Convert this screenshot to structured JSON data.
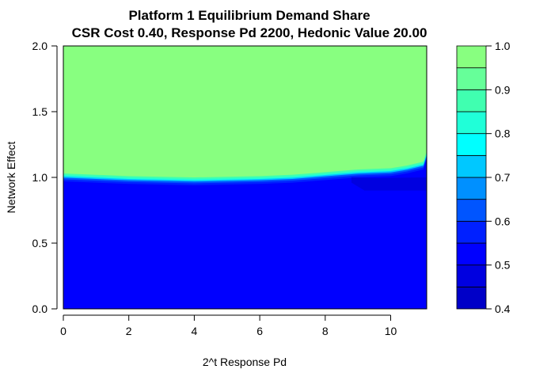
{
  "chart_data": {
    "type": "heatmap",
    "title": "Platform 1 Equilibrium Demand Share",
    "subtitle": "CSR Cost 0.40, Response Pd 2200, Hedonic Value 20.00",
    "xlabel": "2^t Response Pd",
    "ylabel": "Network Effect",
    "xlim": [
      0,
      11.1
    ],
    "ylim": [
      0,
      2.0
    ],
    "x_ticks": [
      "0",
      "2",
      "4",
      "6",
      "8",
      "10"
    ],
    "x_tick_values": [
      0,
      2,
      4,
      6,
      8,
      10
    ],
    "y_ticks": [
      "0.0",
      "0.5",
      "1.0",
      "1.5",
      "2.0"
    ],
    "y_tick_values": [
      0,
      0.5,
      1.0,
      1.5,
      2.0
    ],
    "legend": {
      "placement": "right",
      "levels": [
        0.4,
        0.45,
        0.5,
        0.55,
        0.6,
        0.65,
        0.7,
        0.75,
        0.8,
        0.85,
        0.9,
        0.95,
        1.0
      ],
      "labels": [
        "0.4",
        "0.5",
        "0.6",
        "0.7",
        "0.8",
        "0.9",
        "1.0"
      ],
      "label_values": [
        0.4,
        0.5,
        0.6,
        0.7,
        0.8,
        0.9,
        1.0
      ],
      "colors": [
        "#0000c8",
        "#0000e0",
        "#0000ff",
        "#0020ff",
        "#0055ff",
        "#0090ff",
        "#00c8ff",
        "#00ffff",
        "#20ffd8",
        "#40ffb0",
        "#66ff99",
        "#88ff80",
        "#aaff66"
      ]
    },
    "regions": [
      {
        "description_value": 0.975,
        "x_from": 0,
        "x_to": 11.1,
        "y_from": 1.0,
        "y_to": 2.0
      },
      {
        "description_value": 0.525,
        "x_from": 0,
        "x_to": 11.1,
        "y_from": 0,
        "y_to": 0.95
      }
    ],
    "boundary_y_at_x": {
      "x": [
        0,
        2,
        4,
        6,
        7,
        8,
        9,
        10,
        10.5,
        11,
        11.1
      ],
      "y": [
        1.03,
        1.01,
        1.0,
        1.01,
        1.02,
        1.04,
        1.06,
        1.07,
        1.09,
        1.12,
        1.2
      ]
    },
    "dark_region": {
      "value": 0.475,
      "x_from": 8.8,
      "x_to": 11.1,
      "y_from": 0.9,
      "y_to": 1.0
    }
  }
}
